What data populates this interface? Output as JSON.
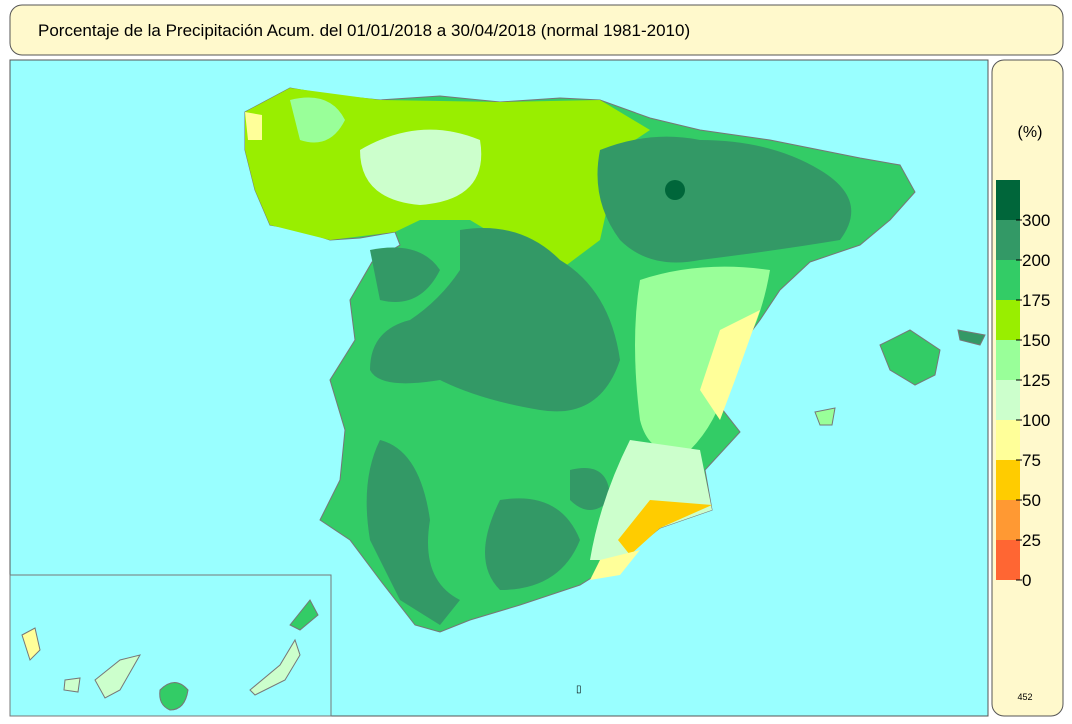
{
  "title": "Porcentaje de la Precipitación Acum. del 01/01/2018 a  30/04/2018  (normal 1981-2010)",
  "legend": {
    "unit": "(%)",
    "ticks": [
      300,
      200,
      175,
      150,
      125,
      100,
      75,
      50,
      25,
      0
    ],
    "colors": [
      "#00663a",
      "#339966",
      "#33cc66",
      "#99ee00",
      "#99ff99",
      "#ccffcc",
      "#ffff99",
      "#ffcc00",
      "#ff9933",
      "#ff6633"
    ]
  },
  "footer_code": "452"
}
